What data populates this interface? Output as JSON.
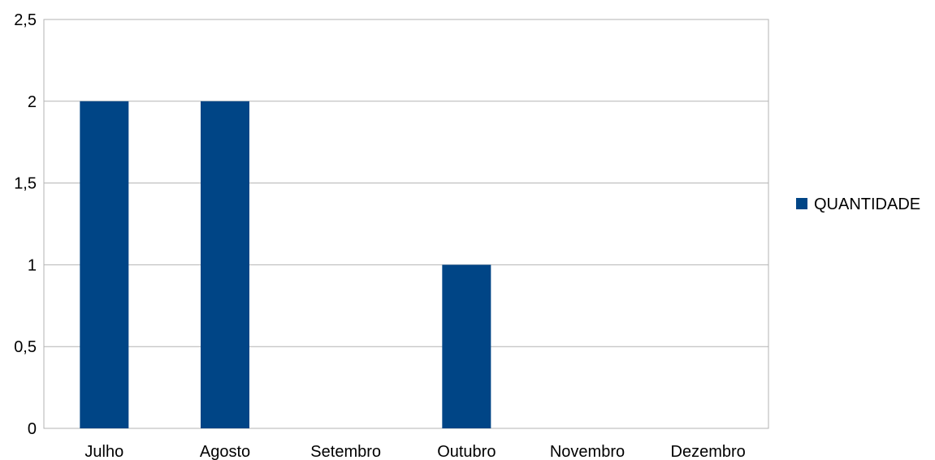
{
  "chart_data": {
    "type": "bar",
    "categories": [
      "Julho",
      "Agosto",
      "Setembro",
      "Outubro",
      "Novembro",
      "Dezembro"
    ],
    "series": [
      {
        "name": "QUANTIDADE",
        "values": [
          2,
          2,
          0,
          1,
          0,
          0
        ],
        "color": "#004586"
      }
    ],
    "y_ticks": [
      "0",
      "0,5",
      "1",
      "1,5",
      "2",
      "2,5"
    ],
    "ylim": [
      0,
      2.5
    ],
    "y_step": 0.5,
    "grid": true,
    "legend_position": "right",
    "title": "",
    "xlabel": "",
    "ylabel": ""
  }
}
